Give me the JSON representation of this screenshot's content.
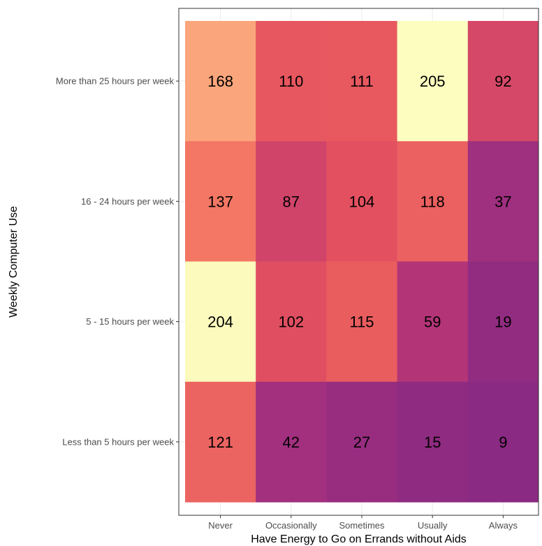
{
  "chart_data": {
    "type": "heatmap",
    "title": "",
    "xlabel": "Have Energy to Go on Errands without Aids",
    "ylabel": "Weekly Computer Use",
    "x_categories": [
      "Never",
      "Occasionally",
      "Sometimes",
      "Usually",
      "Always"
    ],
    "y_categories": [
      "More than 25 hours per week",
      "16 - 24 hours per week",
      "5 - 15 hours per week",
      "Less than 5 hours per week"
    ],
    "values": [
      [
        168,
        110,
        111,
        205,
        92
      ],
      [
        137,
        87,
        104,
        118,
        37
      ],
      [
        204,
        102,
        115,
        59,
        19
      ],
      [
        121,
        42,
        27,
        15,
        9
      ]
    ],
    "colorscale": [
      "#8b2a82",
      "#a2307f",
      "#c23a72",
      "#e6535e",
      "#f47a64",
      "#fbab7e",
      "#fcfdbf"
    ],
    "value_range": [
      9,
      205
    ],
    "grid": true,
    "legend": "none"
  }
}
